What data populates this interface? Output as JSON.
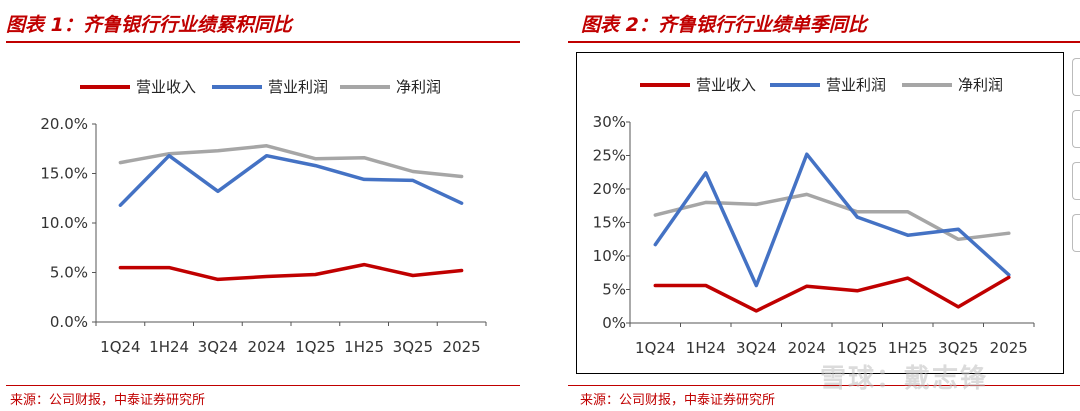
{
  "chart_data": [
    {
      "type": "line",
      "title": "图表 1：齐鲁银行行业绩累积同比",
      "source": "来源：公司财报，中泰证券研究所",
      "categories": [
        "1Q24",
        "1H24",
        "3Q24",
        "2024",
        "1Q25",
        "1H25",
        "3Q25",
        "2025"
      ],
      "ytick_labels": [
        "0.0%",
        "5.0%",
        "10.0%",
        "15.0%",
        "20.0%"
      ],
      "ylim": [
        0,
        20
      ],
      "legend_position": "top",
      "series": [
        {
          "name": "营业收入",
          "color": "#c00000",
          "values": [
            5.5,
            5.5,
            4.3,
            4.6,
            4.8,
            5.8,
            4.7,
            5.2
          ]
        },
        {
          "name": "营业利润",
          "color": "#4472c4",
          "values": [
            11.8,
            16.8,
            13.2,
            16.8,
            15.8,
            14.4,
            14.3,
            12.0
          ]
        },
        {
          "name": "净利润",
          "color": "#a6a6a6",
          "values": [
            16.1,
            17.0,
            17.3,
            17.8,
            16.5,
            16.6,
            15.2,
            14.7
          ]
        }
      ]
    },
    {
      "type": "line",
      "title": "图表 2：齐鲁银行行业绩单季同比",
      "source": "来源：公司财报，中泰证券研究所",
      "categories": [
        "1Q24",
        "1H24",
        "3Q24",
        "2024",
        "1Q25",
        "1H25",
        "3Q25",
        "2025"
      ],
      "ytick_labels": [
        "0%",
        "5%",
        "10%",
        "15%",
        "20%",
        "25%",
        "30%"
      ],
      "ylim": [
        0,
        30
      ],
      "legend_position": "top",
      "series": [
        {
          "name": "营业收入",
          "color": "#c00000",
          "values": [
            5.6,
            5.6,
            1.8,
            5.5,
            4.8,
            6.7,
            2.4,
            6.8
          ]
        },
        {
          "name": "营业利润",
          "color": "#4472c4",
          "values": [
            11.7,
            22.4,
            5.6,
            25.2,
            15.8,
            13.1,
            14.0,
            7.2
          ]
        },
        {
          "name": "净利润",
          "color": "#a6a6a6",
          "values": [
            16.1,
            18.0,
            17.7,
            19.2,
            16.6,
            16.6,
            12.5,
            13.4
          ]
        }
      ]
    }
  ],
  "watermark": "雪球：戴志锋"
}
